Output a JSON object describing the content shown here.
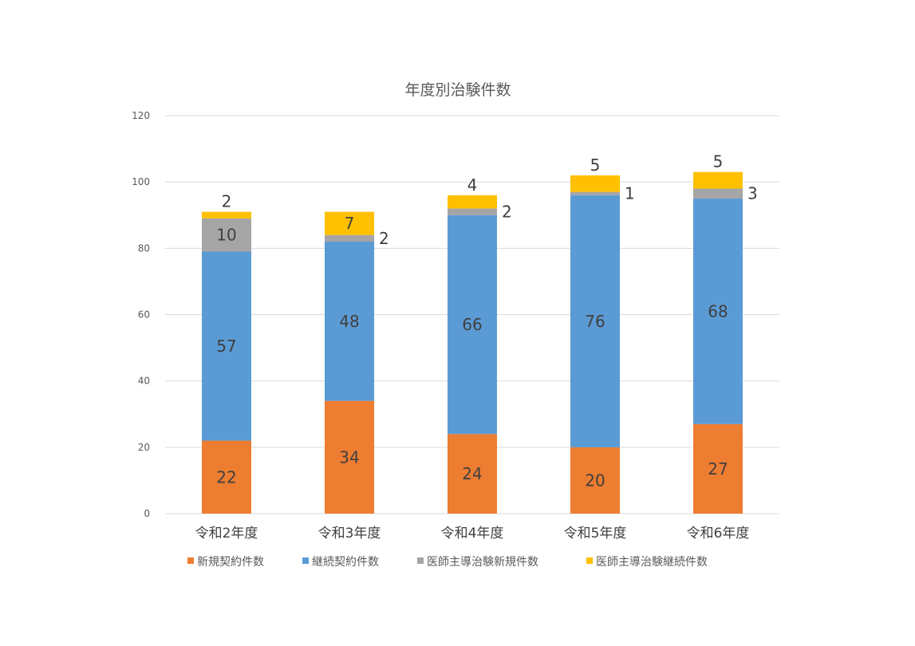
{
  "chart_data": {
    "type": "bar",
    "stacked": true,
    "title": "年度別治験件数",
    "categories": [
      "令和2年度",
      "令和3年度",
      "令和4年度",
      "令和5年度",
      "令和6年度"
    ],
    "series": [
      {
        "name": "新規契約件数",
        "color": "#ED7D31",
        "values": [
          22,
          34,
          24,
          20,
          27
        ]
      },
      {
        "name": "継続契約件数",
        "color": "#5B9BD5",
        "values": [
          57,
          48,
          66,
          76,
          68
        ]
      },
      {
        "name": "医師主導治験新規件数",
        "color": "#A5A5A5",
        "values": [
          10,
          2,
          2,
          1,
          3
        ]
      },
      {
        "name": "医師主導治験継続件数",
        "color": "#FFC000",
        "values": [
          2,
          7,
          4,
          5,
          5
        ]
      }
    ],
    "ylim": [
      0,
      120
    ],
    "yticks": [
      0,
      20,
      40,
      60,
      80,
      100,
      120
    ],
    "grid": true,
    "legend": "bottom",
    "data_labels": true
  }
}
